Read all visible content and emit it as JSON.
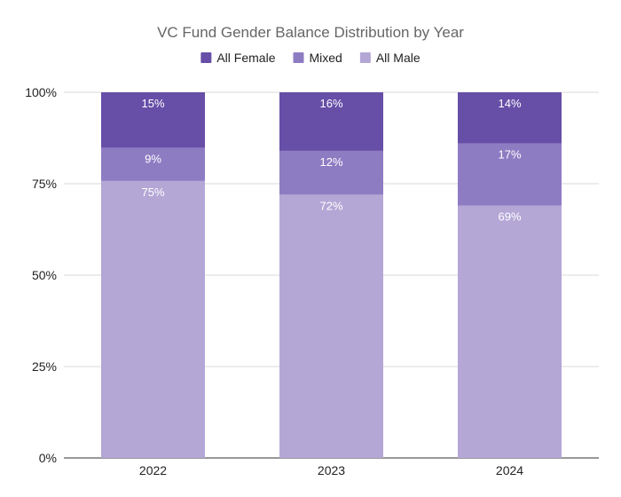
{
  "chart_data": {
    "type": "bar",
    "stacked": true,
    "title": "VC Fund Gender Balance Distribution by Year",
    "xlabel": "",
    "ylabel": "",
    "categories": [
      "2022",
      "2023",
      "2024"
    ],
    "ylim": [
      0,
      100
    ],
    "yticks": [
      0,
      25,
      50,
      75,
      100
    ],
    "ytick_labels": [
      "0%",
      "25%",
      "50%",
      "75%",
      "100%"
    ],
    "grid": true,
    "legend_position": "top",
    "series": [
      {
        "name": "All Male",
        "values": [
          75,
          72,
          69
        ],
        "labels": [
          "75%",
          "72%",
          "69%"
        ],
        "color": "#b4a7d6"
      },
      {
        "name": "Mixed",
        "values": [
          9,
          12,
          17
        ],
        "labels": [
          "9%",
          "12%",
          "17%"
        ],
        "color": "#8e7cc3"
      },
      {
        "name": "All Female",
        "values": [
          15,
          16,
          14
        ],
        "labels": [
          "15%",
          "16%",
          "14%"
        ],
        "color": "#674ea7"
      }
    ],
    "legend_order": [
      "All Female",
      "Mixed",
      "All Male"
    ]
  }
}
